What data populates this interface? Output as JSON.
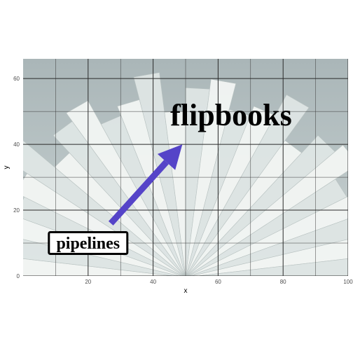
{
  "chart_data": {
    "type": "annotation",
    "title": "",
    "xlabel": "x",
    "ylabel": "y",
    "xlim": [
      0,
      100
    ],
    "ylim": [
      0,
      66
    ],
    "x_ticks": [
      20,
      40,
      60,
      80,
      100
    ],
    "y_ticks": [
      0,
      20,
      40,
      60
    ],
    "grid": true,
    "background": "photo of fanned book pages",
    "annotations": [
      {
        "kind": "text",
        "label": "flipbooks",
        "x": 64,
        "y": 49
      },
      {
        "kind": "label_box",
        "label": "pipelines",
        "x": 20,
        "y": 10
      }
    ],
    "arrow": {
      "x_start": 27,
      "y_start": 16,
      "x_end": 49,
      "y_end": 40,
      "color": "#5544c8"
    }
  }
}
